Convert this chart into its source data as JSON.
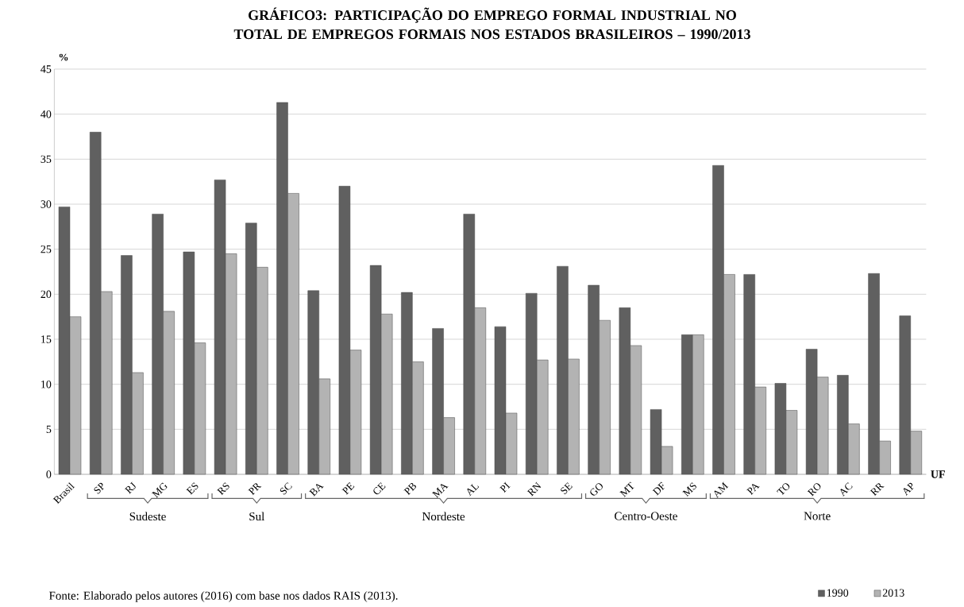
{
  "chart_data": {
    "type": "bar",
    "title": "GRÁFICO3: PARTICIPAÇÃO DO EMPREGO FORMAL INDUSTRIAL NO TOTAL DE EMPREGOS FORMAIS NOS ESTADOS BRASILEIROS – 1990/2013",
    "xlabel": "UF",
    "ylabel": "%",
    "categories": [
      "Brasil",
      "SP",
      "RJ",
      "MG",
      "ES",
      "RS",
      "PR",
      "SC",
      "BA",
      "PE",
      "CE",
      "PB",
      "MA",
      "AL",
      "PI",
      "RN",
      "SE",
      "GO",
      "MT",
      "DF",
      "MS",
      "AM",
      "PA",
      "TO",
      "RO",
      "AC",
      "RR",
      "AP"
    ],
    "series": [
      {
        "name": "1990",
        "color": "#606060",
        "values": [
          29.7,
          38.0,
          24.3,
          28.9,
          24.7,
          32.7,
          27.9,
          41.3,
          20.4,
          32.0,
          23.2,
          20.2,
          16.2,
          28.9,
          16.4,
          20.1,
          23.1,
          21.0,
          18.5,
          7.2,
          15.5,
          34.3,
          22.2,
          10.1,
          13.9,
          11.0,
          22.3,
          17.6
        ]
      },
      {
        "name": "2013",
        "color": "#b3b3b3",
        "values": [
          17.5,
          20.3,
          11.3,
          18.1,
          14.6,
          24.5,
          23.0,
          31.2,
          10.6,
          13.8,
          17.8,
          12.5,
          6.3,
          18.5,
          6.8,
          12.7,
          12.8,
          17.1,
          14.3,
          3.1,
          15.5,
          22.2,
          9.7,
          7.1,
          10.8,
          5.6,
          3.7,
          4.8
        ]
      }
    ],
    "ylim": [
      0,
      45
    ],
    "yticks": [
      0,
      5,
      10,
      15,
      20,
      25,
      30,
      35,
      40,
      45
    ],
    "grid": "y",
    "legend": "bottom right",
    "annotations": [
      "Sudeste",
      "Sul",
      "Nordeste",
      "Centro-Oeste",
      "Norte",
      "Fonte: Elaborado pelos autores (2016) com base nos dados RAIS (2013)."
    ]
  }
}
